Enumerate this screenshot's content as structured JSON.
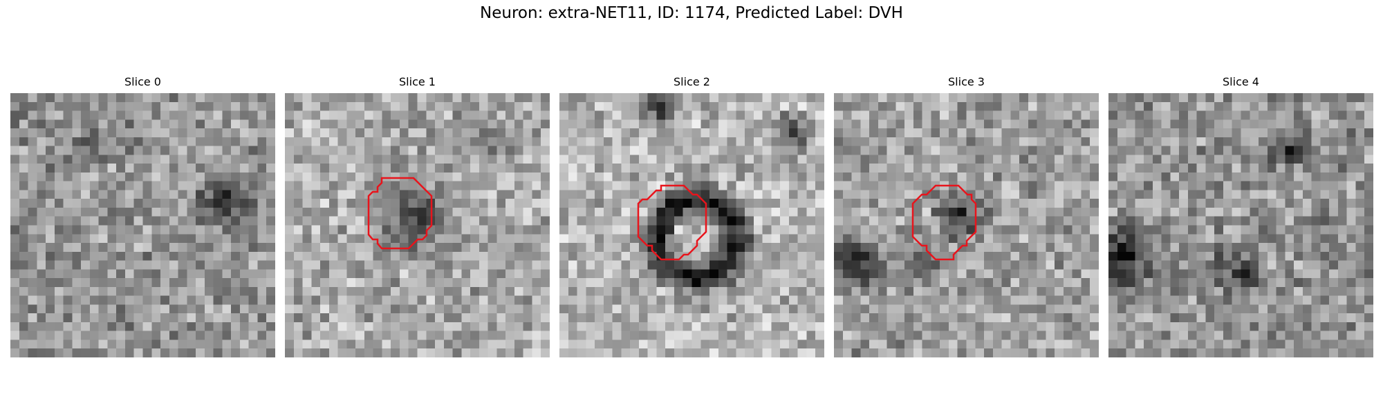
{
  "figure": {
    "title": "Neuron: extra-NET11, ID: 1174, Predicted Label: DVH",
    "outline_color": "#e8141c"
  },
  "slices": [
    {
      "title": "Slice 0",
      "has_outline": false
    },
    {
      "title": "Slice 1",
      "has_outline": true
    },
    {
      "title": "Slice 2",
      "has_outline": true
    },
    {
      "title": "Slice 3",
      "has_outline": true
    },
    {
      "title": "Slice 4",
      "has_outline": false
    }
  ]
}
